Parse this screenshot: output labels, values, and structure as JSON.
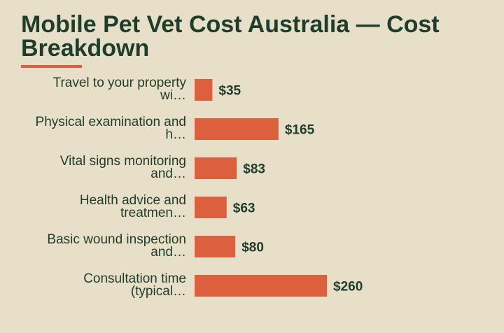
{
  "chart_data": {
    "type": "bar",
    "orientation": "horizontal",
    "title": "Mobile Pet Vet Cost Australia — Cost Breakdown",
    "categories": [
      [
        "Travel to your property",
        "wi…"
      ],
      [
        "Physical examination and",
        "h…"
      ],
      [
        "Vital signs monitoring",
        "and…"
      ],
      [
        "Health advice and",
        "treatmen…"
      ],
      [
        "Basic wound inspection",
        "and…"
      ],
      [
        "Consultation time",
        "(typical…"
      ]
    ],
    "values": [
      35,
      165,
      83,
      63,
      80,
      260
    ],
    "value_labels": [
      "$35",
      "$165",
      "$83",
      "$63",
      "$80",
      "$260"
    ],
    "xlabel": "",
    "ylabel": "",
    "grid": false,
    "legend": "none",
    "colors": {
      "bar": "#dc603d",
      "text": "#1f3d2b",
      "background": "#e8dfc9"
    }
  }
}
